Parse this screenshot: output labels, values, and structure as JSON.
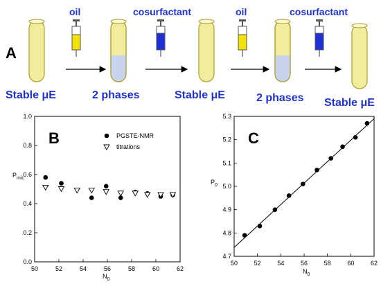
{
  "panel_a": {
    "letter": "A",
    "labels": {
      "oil_1": "oil",
      "cosurf_1": "cosurfactant",
      "oil_2": "oil",
      "cosurf_2": "cosurfactant",
      "stable_1": "Stable μE",
      "two_phases_1": "2 phases",
      "stable_2": "Stable μE",
      "two_phases_2": "2 phases",
      "stable_3": "Stable μE"
    },
    "colors": {
      "tube_fill": "#f3ec9c",
      "tube_stroke": "#a89d2e",
      "lower_phase": "#c8d3ee",
      "oil_syringe": "#f2e200",
      "cosurf_syringe": "#1d2fd6",
      "label_blue": "#1f33cc"
    }
  },
  "chart_data": [
    {
      "panel": "B",
      "type": "scatter",
      "ylabel_main": "P",
      "ylabel_sub": "mic",
      "xlabel_main": "N",
      "xlabel_sub": "0",
      "xlim": [
        50,
        62
      ],
      "ylim": [
        0.0,
        1.0
      ],
      "xticks": [
        "50",
        "52",
        "54",
        "56",
        "58",
        "60",
        "62"
      ],
      "yticks": [
        "0.0",
        "0.2",
        "0.4",
        "0.6",
        "0.8",
        "1.0"
      ],
      "legend_position": "top-right",
      "series": [
        {
          "name": "PGSTE-NMR",
          "marker": "filled-circle",
          "x": [
            50.9,
            52.2,
            54.7,
            55.9,
            57.1,
            58.3,
            59.3,
            60.4,
            61.4
          ],
          "y": [
            0.58,
            0.54,
            0.44,
            0.52,
            0.44,
            0.48,
            0.47,
            0.45,
            0.46
          ]
        },
        {
          "name": "titrations",
          "marker": "open-triangle-down",
          "x": [
            50.9,
            52.2,
            53.5,
            54.7,
            55.9,
            57.1,
            58.3,
            59.3,
            60.4,
            61.4
          ],
          "y": [
            0.51,
            0.5,
            0.49,
            0.49,
            0.48,
            0.47,
            0.47,
            0.46,
            0.46,
            0.46
          ]
        }
      ]
    },
    {
      "panel": "C",
      "type": "scatter",
      "ylabel_main": "P",
      "ylabel_sub": "0",
      "xlabel_main": "N",
      "xlabel_sub": "0",
      "xlim": [
        50,
        62
      ],
      "ylim": [
        4.7,
        5.3
      ],
      "xticks": [
        "50",
        "52",
        "54",
        "56",
        "58",
        "60",
        "62"
      ],
      "yticks": [
        "4.7",
        "4.8",
        "4.9",
        "5.0",
        "5.1",
        "5.2",
        "5.3"
      ],
      "series": [
        {
          "name": "",
          "marker": "filled-circle",
          "x": [
            50.9,
            52.2,
            53.5,
            54.7,
            55.9,
            57.1,
            58.3,
            59.3,
            60.4,
            61.4
          ],
          "y": [
            4.79,
            4.83,
            4.9,
            4.96,
            5.01,
            5.07,
            5.12,
            5.17,
            5.21,
            5.27
          ]
        }
      ],
      "fit_line": {
        "x": [
          50,
          62
        ],
        "y": [
          4.738,
          5.29
        ]
      }
    }
  ]
}
